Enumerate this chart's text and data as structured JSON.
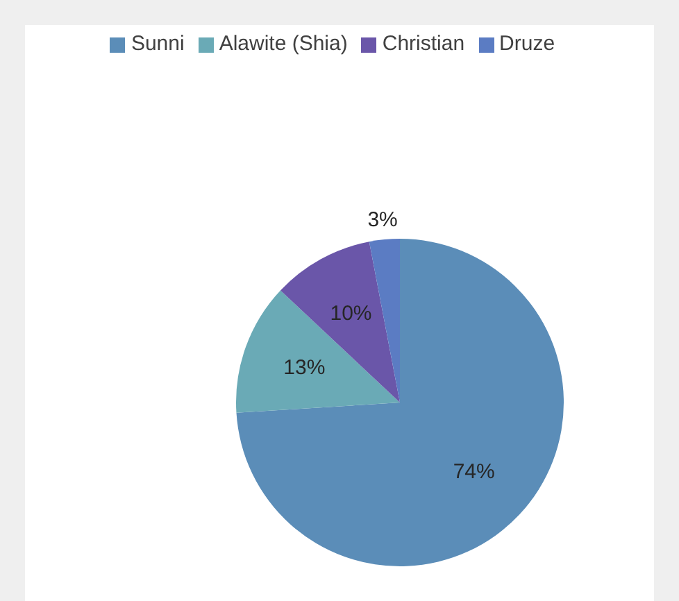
{
  "chart_data": {
    "type": "pie",
    "categories": [
      "Sunni",
      "Alawite (Shia)",
      "Christian",
      "Druze"
    ],
    "values": [
      74,
      13,
      10,
      3
    ],
    "colors": [
      "#5b8db8",
      "#6aaab6",
      "#6a56a9",
      "#5b7cc3"
    ],
    "value_labels": [
      "74%",
      "13%",
      "10%",
      "3%"
    ],
    "legend": "top"
  }
}
